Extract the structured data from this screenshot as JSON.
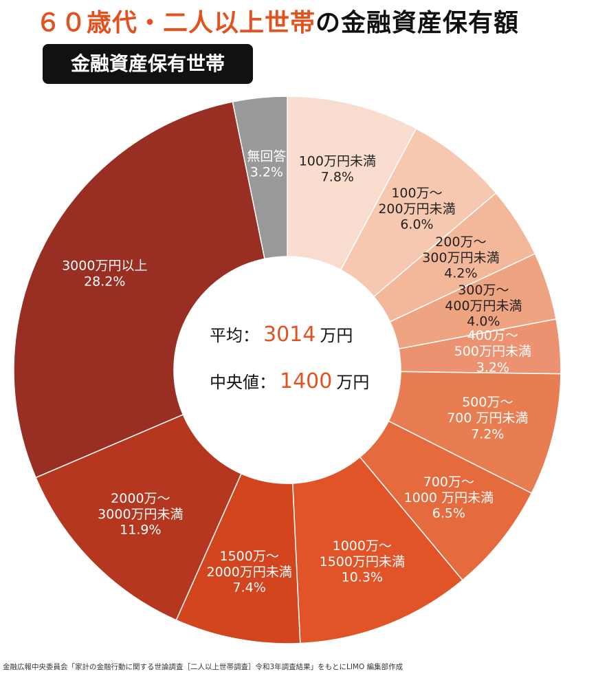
{
  "chart_data": {
    "type": "donut",
    "title": {
      "highlight": "６０歳代・二人以上世帯",
      "rest": "の金融資産保有額"
    },
    "subtitle": "金融資産保有世帯",
    "categories": [
      "100万円未満",
      "100万～\n200万円未満",
      "200万～\n300万円未満",
      "300万～\n400万円未満",
      "400万～\n500万円未満",
      "500万～\n700 万円未満",
      "700万～\n1000 万円未満",
      "1000万～\n1500万円未満",
      "1500万～\n2000万円未満",
      "2000万～\n3000万円未満",
      "3000万円以上",
      "無回答"
    ],
    "values": [
      7.8,
      6.0,
      4.2,
      4.0,
      3.2,
      7.2,
      6.5,
      10.3,
      7.4,
      11.9,
      28.2,
      3.2
    ],
    "value_labels": [
      "7.8%",
      "6.0%",
      "4.2%",
      "4.0%",
      "3.2%",
      "7.2%",
      "6.5%",
      "10.3%",
      "7.4%",
      "11.9%",
      "28.2%",
      "3.2%"
    ],
    "colors": [
      "#f8dccd",
      "#f6c8b0",
      "#f3b79a",
      "#efa481",
      "#ec9270",
      "#e97d52",
      "#e56a3e",
      "#e05427",
      "#d3451e",
      "#b5371f",
      "#992e22",
      "#999999"
    ],
    "annotations": {
      "mean": {
        "label": "平均：",
        "value": 3014,
        "unit": "万円"
      },
      "median": {
        "label": "中央値：",
        "value": 1400,
        "unit": "万円"
      }
    },
    "source": "金融広報中央委員会「家計の金融行動に関する世論調査［二人以上世帯調査］令和3年調査結果」をもとにLIMO 編集部作成"
  }
}
